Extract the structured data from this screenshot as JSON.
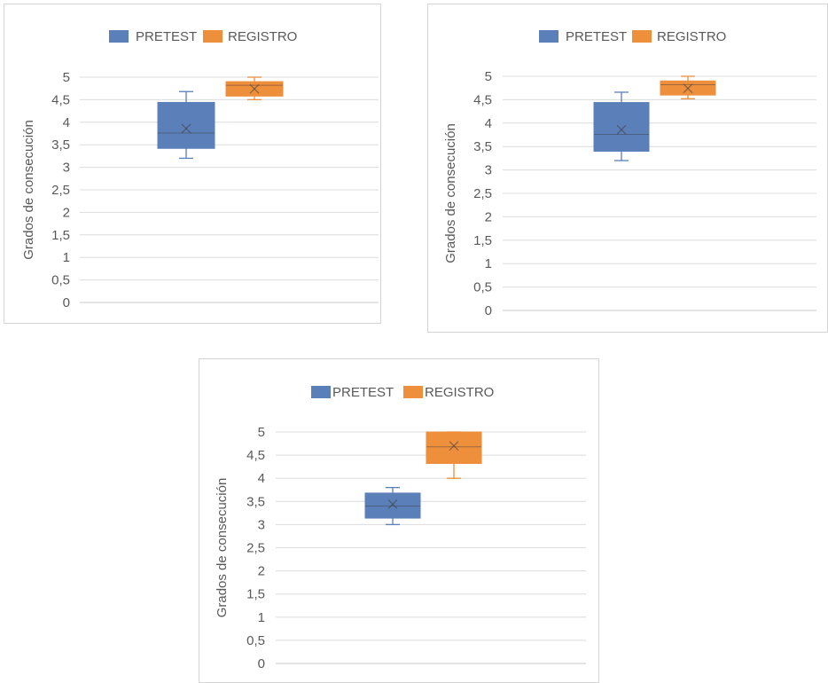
{
  "chart_data": [
    {
      "type": "box",
      "ylabel": "Grados de consecución",
      "ylim": [
        0,
        5
      ],
      "yticks": [
        "0",
        "0,5",
        "1",
        "1,5",
        "2",
        "2,5",
        "3",
        "3,5",
        "4",
        "4,5",
        "5"
      ],
      "grid": true,
      "legend_position": "top",
      "series": [
        {
          "name": "PRETEST",
          "color": "#5b7fb8",
          "min": 3.2,
          "q1": 3.42,
          "median": 3.76,
          "q3": 4.44,
          "max": 4.68,
          "mean": 3.86
        },
        {
          "name": "REGISTRO",
          "color": "#ee8f3c",
          "min": 4.5,
          "q1": 4.58,
          "median": 4.82,
          "q3": 4.9,
          "max": 5.0,
          "mean": 4.74
        }
      ]
    },
    {
      "type": "box",
      "ylabel": "Grados de consecución",
      "ylim": [
        0,
        5
      ],
      "yticks": [
        "0",
        "0,5",
        "1",
        "1,5",
        "2",
        "2,5",
        "3",
        "3,5",
        "4",
        "4,5",
        "5"
      ],
      "grid": true,
      "legend_position": "top",
      "series": [
        {
          "name": "PRETEST",
          "color": "#5b7fb8",
          "min": 3.2,
          "q1": 3.4,
          "median": 3.76,
          "q3": 4.44,
          "max": 4.66,
          "mean": 3.86
        },
        {
          "name": "REGISTRO",
          "color": "#ee8f3c",
          "min": 4.52,
          "q1": 4.6,
          "median": 4.82,
          "q3": 4.9,
          "max": 5.0,
          "mean": 4.74
        }
      ]
    },
    {
      "type": "box",
      "ylabel": "Grados de consecución",
      "ylim": [
        0,
        5
      ],
      "yticks": [
        "0",
        "0,5",
        "1",
        "1,5",
        "2",
        "2,5",
        "3",
        "3,5",
        "4",
        "4,5",
        "5"
      ],
      "grid": true,
      "legend_position": "top",
      "series": [
        {
          "name": "PRETEST",
          "color": "#5b7fb8",
          "min": 3.0,
          "q1": 3.14,
          "median": 3.4,
          "q3": 3.68,
          "max": 3.8,
          "mean": 3.44
        },
        {
          "name": "REGISTRO",
          "color": "#ee8f3c",
          "min": 4.0,
          "q1": 4.32,
          "median": 4.68,
          "q3": 5.0,
          "max": 5.0,
          "mean": 4.7
        }
      ]
    }
  ]
}
